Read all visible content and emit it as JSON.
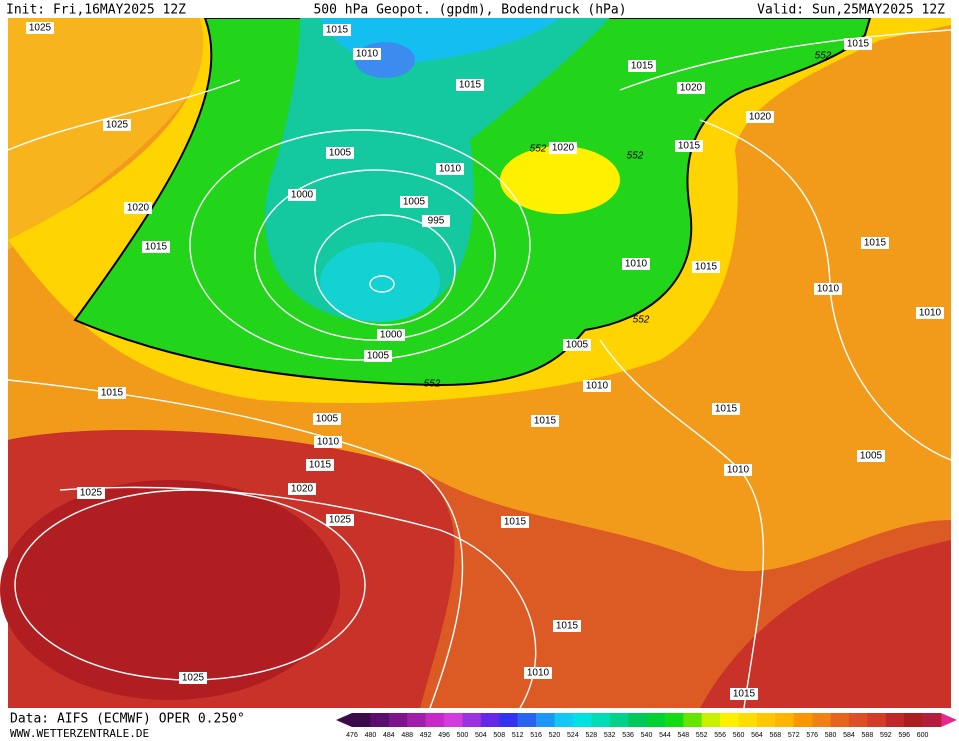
{
  "header": {
    "init": "Init: Fri,16MAY2025 12Z",
    "title": "500 hPa Geopot. (gpdm), Bodendruck (hPa)",
    "valid": "Valid: Sun,25MAY2025 12Z"
  },
  "map_labels": [
    1025,
    1015,
    1010,
    1015,
    1015,
    1015,
    552,
    1020,
    1020,
    1025,
    1005,
    552,
    1020,
    552,
    1015,
    1010,
    1000,
    1005,
    995,
    1020,
    1015,
    1015,
    1010,
    1015,
    1010,
    1010,
    552,
    1000,
    1005,
    1005,
    552,
    1010,
    1015,
    1005,
    1015,
    1015,
    1010,
    1015,
    1005,
    1010,
    1020,
    1025,
    1025,
    1015,
    1015,
    1010,
    1025,
    1015
  ],
  "colorbar": {
    "labels": [
      476,
      480,
      484,
      488,
      492,
      496,
      500,
      504,
      508,
      512,
      516,
      520,
      524,
      528,
      532,
      536,
      540,
      544,
      548,
      552,
      556,
      560,
      564,
      568,
      572,
      576,
      580,
      584,
      588,
      592,
      596,
      600
    ]
  },
  "footer": {
    "data_source": "Data: AIFS (ECMWF) OPER 0.250°",
    "website": "WWW.WETTERZENTRALE.DE"
  }
}
